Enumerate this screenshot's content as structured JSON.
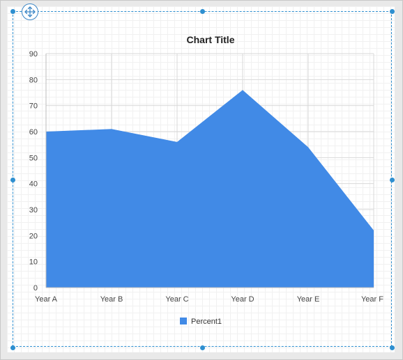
{
  "chart_data": {
    "type": "area",
    "title": "Chart Title",
    "categories": [
      "Year A",
      "Year B",
      "Year C",
      "Year D",
      "Year E",
      "Year F"
    ],
    "series": [
      {
        "name": "Percent1",
        "values": [
          60,
          61,
          56,
          76,
          54,
          22
        ]
      }
    ],
    "ylim": [
      0,
      90
    ],
    "yticks": [
      0,
      10,
      20,
      30,
      40,
      50,
      60,
      70,
      80,
      90
    ],
    "grid": true,
    "legend": "bottom"
  },
  "colors": {
    "series_fill": "#418ae6",
    "gridline": "#d9d9d9",
    "selection": "#2e8fd0"
  },
  "icons": {
    "move_handle": "move-arrows-icon"
  }
}
